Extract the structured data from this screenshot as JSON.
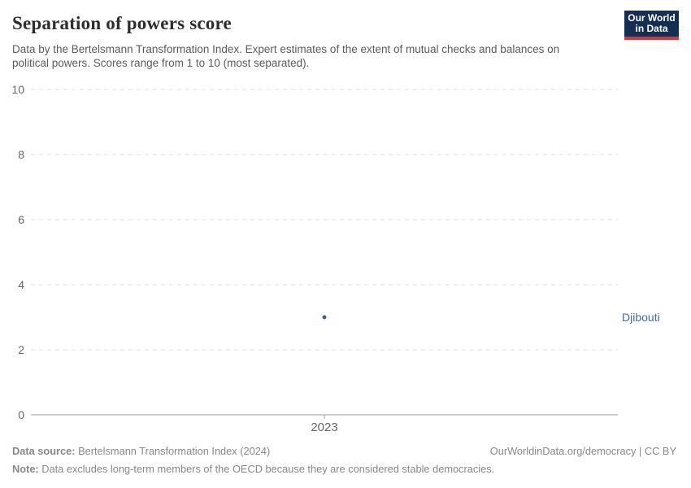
{
  "header": {
    "title": "Separation of powers score",
    "subtitle": "Data by the Bertelsmann Transformation Index. Expert estimates of the extent of mutual checks and balances on political powers. Scores range from 1 to 10 (most separated).",
    "logo": {
      "line1": "Our World",
      "line2": "in Data"
    }
  },
  "chart_data": {
    "type": "scatter",
    "title": "Separation of powers score",
    "x": [
      2023
    ],
    "xticks": [
      "2023"
    ],
    "series": [
      {
        "name": "Djibouti",
        "values": [
          3
        ]
      }
    ],
    "entity_label": "Djibouti",
    "xlabel": "",
    "ylabel": "",
    "ylim": [
      0,
      10
    ],
    "yticks": [
      0,
      2,
      4,
      6,
      8,
      10
    ],
    "grid": "horizontal-dashed",
    "legend_position": "right-of-point",
    "point_color": "#3d5f99",
    "entity_label_color": "#4c6a9c"
  },
  "footer": {
    "source_label": "Data source:",
    "source_text": " Bertelsmann Transformation Index (2024)",
    "credit": "OurWorldinData.org/democracy | CC BY",
    "note_label": "Note:",
    "note_text": " Data excludes long-term members of the OECD because they are considered stable democracies."
  },
  "colors": {
    "logo_background": "#152e52",
    "logo_stripe": "#d0383f",
    "title_text": "#2d2d2d",
    "subtitle_text": "#5b5b5b",
    "axis_text": "#666666",
    "gridline": "#dcdcdc",
    "axis_line": "#9a9a9a",
    "footer_text": "#888888"
  }
}
